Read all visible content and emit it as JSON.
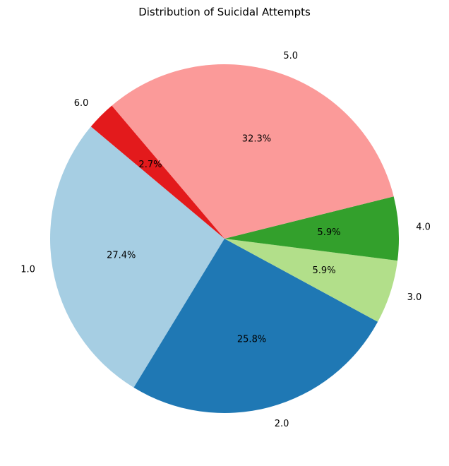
{
  "chart_data": {
    "type": "pie",
    "title": "Distribution of Suicidal Attempts",
    "categories": [
      "1.0",
      "2.0",
      "3.0",
      "4.0",
      "5.0",
      "6.0"
    ],
    "values": [
      27.4,
      25.8,
      5.9,
      5.9,
      32.3,
      2.7
    ],
    "value_labels": [
      "27.4%",
      "25.8%",
      "5.9%",
      "5.9%",
      "32.3%",
      "2.7%"
    ],
    "colors": [
      "#a6cee3",
      "#1f78b4",
      "#b2df8a",
      "#33a02c",
      "#fb9a99",
      "#e31a1c"
    ],
    "start_angle_deg": 140,
    "direction": "counterclockwise",
    "legend": "none"
  }
}
